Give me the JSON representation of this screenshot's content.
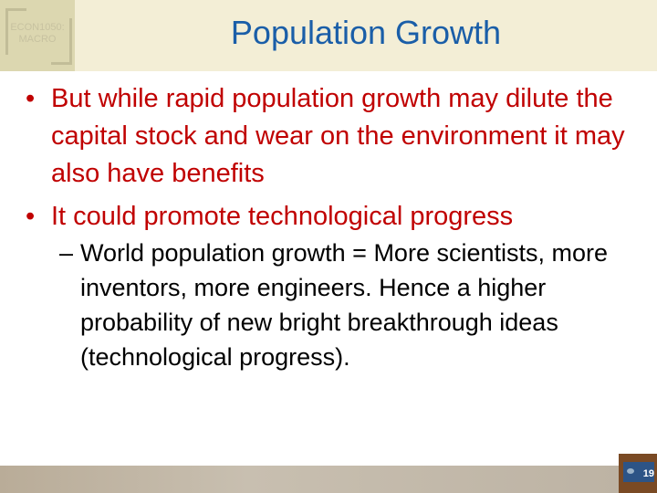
{
  "logo": {
    "line1": "ECON1050:",
    "line2": "MACRO"
  },
  "title": "Population Growth",
  "bullets": [
    {
      "marker": "•",
      "text": "But while rapid population growth may dilute the capital stock and wear on the environment it may also have benefits"
    },
    {
      "marker": "•",
      "text": "It could promote technological progress"
    }
  ],
  "sub": {
    "marker": "–",
    "text": "World population growth = More scientists, more inventors, more engineers. Hence a higher probability of new bright breakthrough ideas (technological progress)."
  },
  "slide_number": "19"
}
